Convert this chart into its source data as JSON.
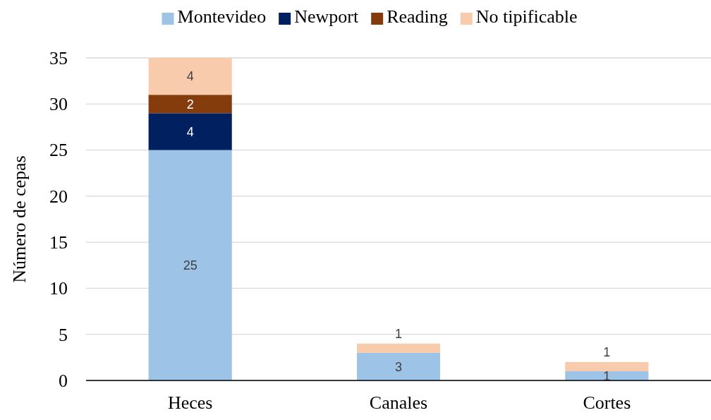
{
  "chart_data": {
    "type": "bar",
    "stacked": true,
    "ylabel": "Número de cepas",
    "categories": [
      "Heces",
      "Canales",
      "Cortes"
    ],
    "ylim": [
      0,
      35
    ],
    "yticks": [
      0,
      5,
      10,
      15,
      20,
      25,
      30,
      35
    ],
    "grid": "y",
    "legend": "top",
    "series": [
      {
        "name": "Montevideo",
        "color": "#9dc3e6",
        "values": [
          25,
          3,
          1
        ],
        "value_labels": [
          "25",
          "3",
          "1"
        ]
      },
      {
        "name": "Newport",
        "color": "#002060",
        "values": [
          4,
          0,
          0
        ],
        "value_labels": [
          "4",
          null,
          null
        ]
      },
      {
        "name": "Reading",
        "color": "#843c0c",
        "values": [
          2,
          0,
          0
        ],
        "value_labels": [
          "2",
          null,
          null
        ]
      },
      {
        "name": "No tipificable",
        "color": "#f8cbad",
        "values": [
          4,
          1,
          1
        ],
        "value_labels": [
          "4",
          "1",
          "1"
        ]
      }
    ]
  }
}
